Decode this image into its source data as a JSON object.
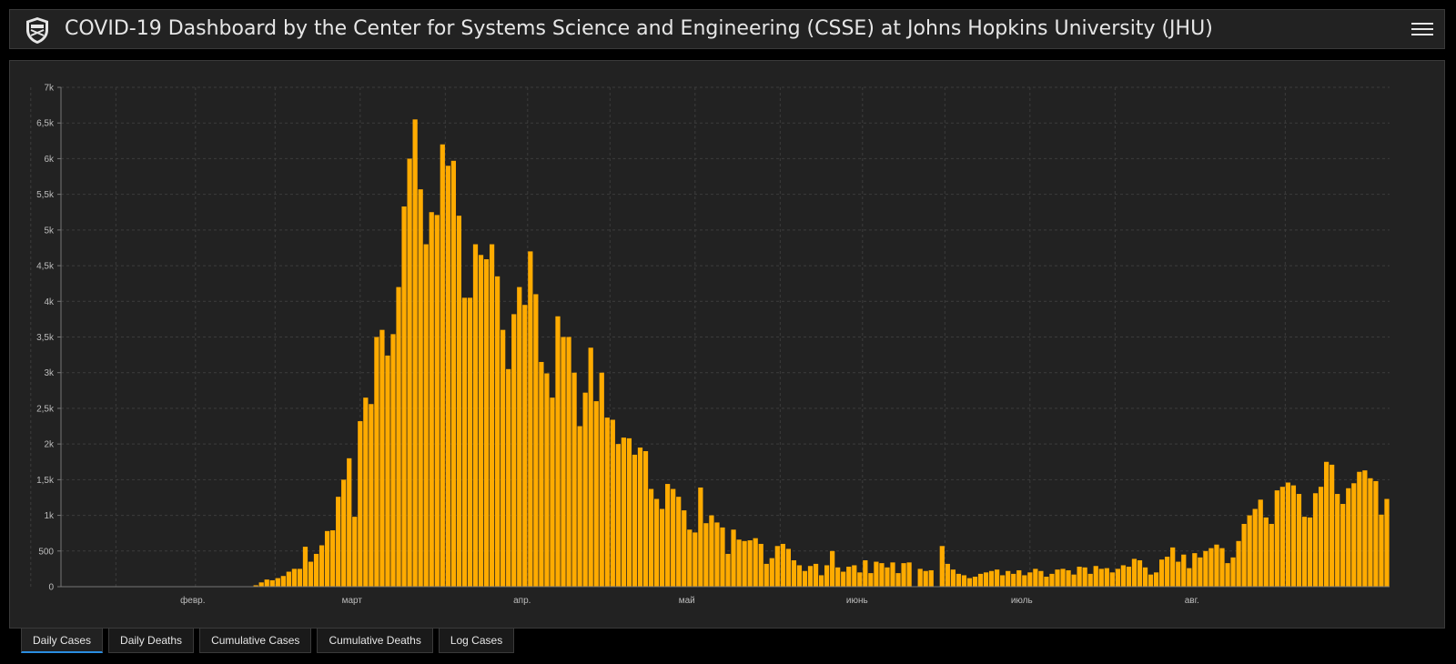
{
  "header": {
    "title": "COVID-19 Dashboard by the Center for Systems Science and Engineering (CSSE) at Johns Hopkins University (JHU)"
  },
  "tabs": [
    {
      "label": "Daily Cases",
      "active": true
    },
    {
      "label": "Daily Deaths",
      "active": false
    },
    {
      "label": "Cumulative Cases",
      "active": false
    },
    {
      "label": "Cumulative Deaths",
      "active": false
    },
    {
      "label": "Log Cases",
      "active": false
    }
  ],
  "colors": {
    "bar": "#ffab00",
    "background": "#222222",
    "grid": "#3c3c3c",
    "accent": "#2a8de0"
  },
  "chart_data": {
    "type": "bar",
    "title": "",
    "xlabel": "",
    "ylabel": "",
    "ylim": [
      0,
      7000
    ],
    "yticks": [
      0,
      500,
      1000,
      1500,
      2000,
      2500,
      3000,
      3500,
      4000,
      4500,
      5000,
      5500,
      6000,
      6500,
      7000
    ],
    "ytick_labels": [
      "0",
      "500",
      "1k",
      "1,5k",
      "2k",
      "2,5k",
      "3k",
      "3,5k",
      "4k",
      "4,5k",
      "5k",
      "5,5k",
      "6k",
      "6,5k",
      "7k"
    ],
    "x_start": "2020-01-22",
    "month_ticks": [
      {
        "date": "2020-01-01",
        "label": ""
      },
      {
        "date": "2020-02-01",
        "label": "февр."
      },
      {
        "date": "2020-03-01",
        "label": "март"
      },
      {
        "date": "2020-04-01",
        "label": "апр."
      },
      {
        "date": "2020-05-01",
        "label": "май"
      },
      {
        "date": "2020-06-01",
        "label": "июнь"
      },
      {
        "date": "2020-07-01",
        "label": "июль"
      },
      {
        "date": "2020-08-01",
        "label": "авг."
      },
      {
        "date": "2020-09-01",
        "label": ""
      }
    ],
    "grid": true,
    "legend": "none",
    "values": [
      0,
      0,
      0,
      0,
      0,
      0,
      0,
      0,
      0,
      0,
      0,
      0,
      0,
      0,
      0,
      0,
      0,
      0,
      0,
      0,
      0,
      0,
      0,
      0,
      0,
      0,
      0,
      0,
      0,
      0,
      0,
      0,
      0,
      0,
      0,
      20,
      60,
      100,
      90,
      120,
      150,
      210,
      250,
      250,
      560,
      350,
      460,
      580,
      780,
      790,
      1260,
      1500,
      1800,
      980,
      2320,
      2650,
      2560,
      3500,
      3600,
      3240,
      3540,
      4200,
      5330,
      6000,
      6550,
      5570,
      4800,
      5250,
      5210,
      6200,
      5900,
      5970,
      5200,
      4050,
      4050,
      4800,
      4650,
      4590,
      4800,
      4350,
      3600,
      3050,
      3820,
      4200,
      3950,
      4700,
      4100,
      3150,
      2990,
      2650,
      3790,
      3500,
      3500,
      3000,
      2250,
      2720,
      3350,
      2600,
      3000,
      2370,
      2340,
      2000,
      2090,
      2080,
      1850,
      1950,
      1900,
      1370,
      1230,
      1090,
      1440,
      1370,
      1260,
      1070,
      800,
      760,
      1390,
      890,
      1000,
      900,
      830,
      460,
      800,
      660,
      640,
      650,
      680,
      600,
      320,
      400,
      570,
      600,
      530,
      370,
      300,
      220,
      290,
      320,
      160,
      300,
      500,
      270,
      210,
      280,
      300,
      200,
      370,
      190,
      350,
      330,
      270,
      340,
      190,
      330,
      340,
      0,
      250,
      220,
      230,
      0,
      570,
      320,
      240,
      180,
      160,
      120,
      140,
      180,
      200,
      220,
      240,
      160,
      220,
      180,
      230,
      160,
      200,
      250,
      220,
      140,
      180,
      240,
      250,
      230,
      170,
      280,
      270,
      180,
      290,
      250,
      260,
      200,
      250,
      300,
      280,
      390,
      370,
      270,
      170,
      200,
      380,
      420,
      550,
      350,
      450,
      260,
      470,
      410,
      500,
      540,
      590,
      540,
      330,
      410,
      640,
      880,
      1000,
      1090,
      1220,
      970,
      880,
      1350,
      1400,
      1460,
      1420,
      1300,
      980,
      970,
      1310,
      1400,
      1750,
      1710,
      1300,
      1160,
      1380,
      1450,
      1610,
      1630,
      1520,
      1480,
      1010,
      1230
    ]
  }
}
